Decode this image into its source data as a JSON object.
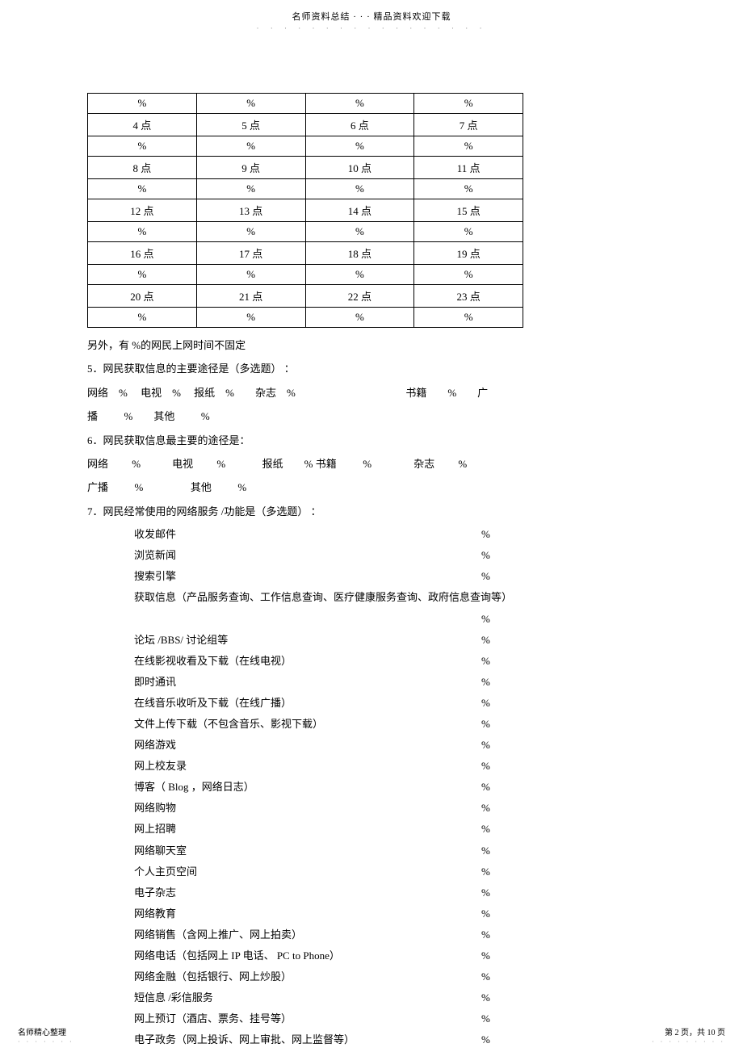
{
  "header": {
    "title": "名师资料总结  ·  ·  · 精品资料欢迎下载",
    "dots": "· · · · · · · · · · · · · · · · ·"
  },
  "time_table": {
    "rows": [
      [
        "%",
        "%",
        "%",
        "%"
      ],
      [
        "4 点",
        "5 点",
        "6 点",
        "7 点"
      ],
      [
        "%",
        "%",
        "%",
        "%"
      ],
      [
        "8 点",
        "9 点",
        "10 点",
        "11 点"
      ],
      [
        "%",
        "%",
        "%",
        "%"
      ],
      [
        "12 点",
        "13 点",
        "14 点",
        "15 点"
      ],
      [
        "%",
        "%",
        "%",
        "%"
      ],
      [
        "16 点",
        "17 点",
        "18 点",
        "19 点"
      ],
      [
        "%",
        "%",
        "%",
        "%"
      ],
      [
        "20 点",
        "21 点",
        "22 点",
        "23 点"
      ],
      [
        "%",
        "%",
        "%",
        "%"
      ]
    ]
  },
  "line_extra": "另外，有  %的网民上网时间不固定",
  "q5": {
    "title": "5．网民获取信息的主要途径是（多选题）   ：",
    "line1": "网络    %     电视    %     报纸    %        杂志    %                                          书籍        %        广",
    "line2": "播          %        其他          %"
  },
  "q6": {
    "title": "6．网民获取信息最主要的途径是：",
    "line1": "网络         %            电视         %              报纸        % 书籍          %                杂志         %",
    "line2": "广播          %                  其他          %"
  },
  "q7": {
    "title": "7．网民经常使用的网络服务    /功能是（多选题） ：",
    "services": [
      {
        "label": "收发邮件",
        "pct": "%"
      },
      {
        "label": "浏览新闻",
        "pct": "%"
      },
      {
        "label": "搜索引擎",
        "pct": "%"
      },
      {
        "label": "获取信息（产品服务查询、工作信息查询、医疗健康服务查询、政府信息查询等）",
        "pct": "",
        "long": true
      },
      {
        "label": "",
        "pct": "%"
      },
      {
        "label": "论坛 /BBS/ 讨论组等",
        "pct": "%"
      },
      {
        "label": "在线影视收看及下载（在线电视）",
        "pct": "%"
      },
      {
        "label": "即时通讯",
        "pct": "%"
      },
      {
        "label": "在线音乐收听及下载（在线广播）",
        "pct": "%"
      },
      {
        "label": "文件上传下载（不包含音乐、影视下载）",
        "pct": "%"
      },
      {
        "label": "网络游戏",
        "pct": "%"
      },
      {
        "label": "网上校友录",
        "pct": "%"
      },
      {
        "label": "博客（ Blog ，网络日志）",
        "pct": "%"
      },
      {
        "label": "网络购物",
        "pct": "%"
      },
      {
        "label": "网上招聘",
        "pct": "%"
      },
      {
        "label": "网络聊天室",
        "pct": "%"
      },
      {
        "label": "个人主页空间",
        "pct": "%"
      },
      {
        "label": "电子杂志",
        "pct": "%"
      },
      {
        "label": "网络教育",
        "pct": "%"
      },
      {
        "label": "网络销售（含网上推广、网上拍卖）",
        "pct": "%"
      },
      {
        "label": "网络电话（包括网上    IP 电话、 PC to Phone）",
        "pct": "%"
      },
      {
        "label": "网络金融（包括银行、网上炒股）",
        "pct": "%"
      },
      {
        "label": "短信息 /彩信服务",
        "pct": " %"
      },
      {
        "label": "网上预订（酒店、票务、挂号等）",
        "pct": " %"
      },
      {
        "label": "电子政务（网上投诉、网上审批、网上监督等）",
        "pct": " %"
      }
    ]
  },
  "footer": {
    "left": "名师精心整理",
    "left_dots": "· · · · · · ·",
    "right": "第 2 页，共 10 页",
    "right_dots": "· · · · · · · · ·"
  }
}
